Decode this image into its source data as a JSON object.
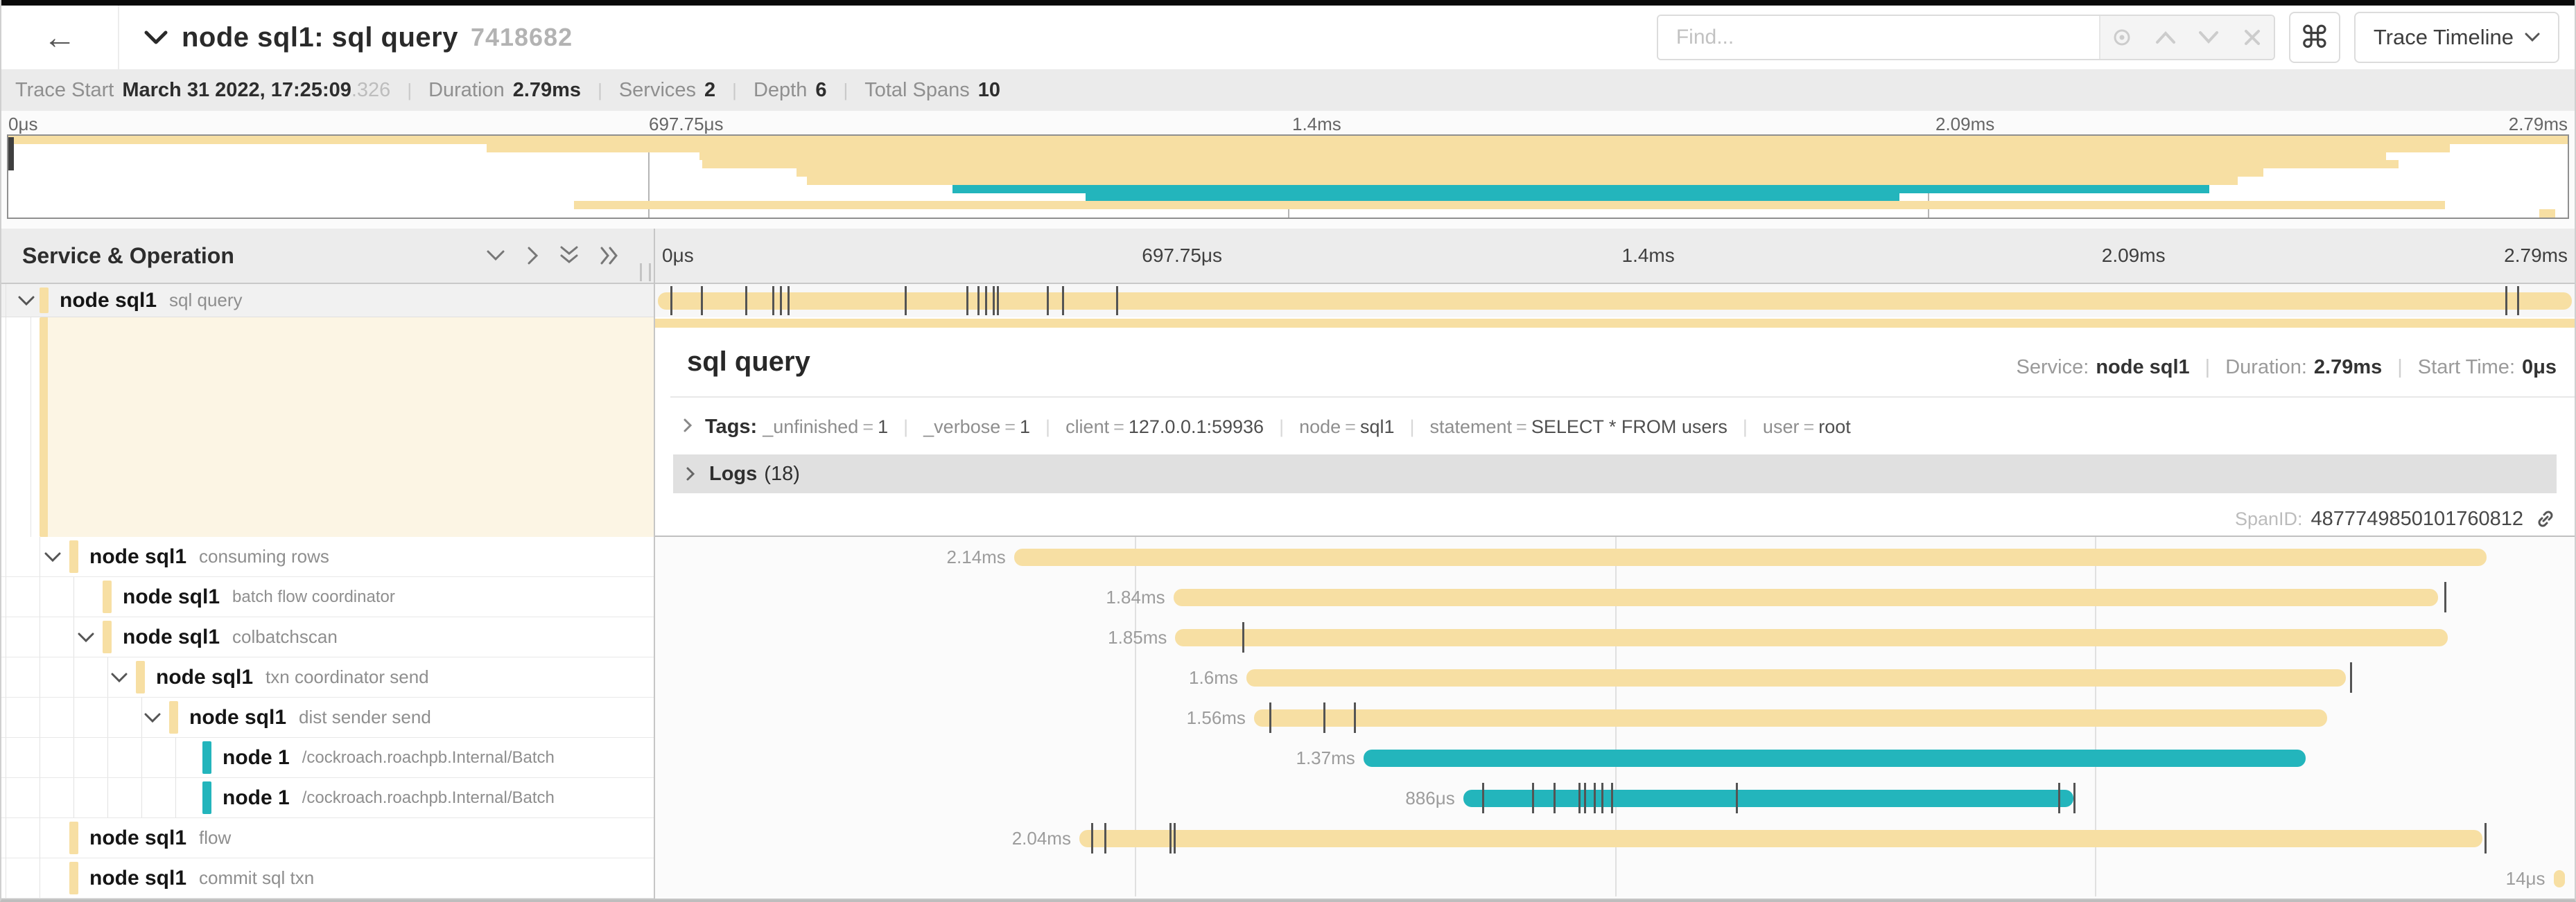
{
  "header": {
    "back_label": "←",
    "title": "node sql1: sql query",
    "trace_id": "7418682",
    "find_placeholder": "Find...",
    "view_label": "Trace Timeline"
  },
  "meta": {
    "items": [
      {
        "label": "Trace Start",
        "value": "March 31 2022, 17:25:09",
        "suffix": ".326"
      },
      {
        "label": "Duration",
        "value": "2.79ms"
      },
      {
        "label": "Services",
        "value": "2"
      },
      {
        "label": "Depth",
        "value": "6"
      },
      {
        "label": "Total Spans",
        "value": "10"
      }
    ]
  },
  "timeline": {
    "ticks": [
      "0μs",
      "697.75μs",
      "1.4ms",
      "2.09ms",
      "2.79ms"
    ],
    "total_duration": "2.79ms"
  },
  "left_header": {
    "title": "Service & Operation"
  },
  "colors": {
    "tan": "#f7dfa3",
    "teal": "#23b5bc"
  },
  "detail": {
    "title": "sql query",
    "service_label": "Service:",
    "service": "node sql1",
    "duration_label": "Duration:",
    "duration": "2.79ms",
    "start_label": "Start Time:",
    "start": "0μs",
    "tags_label": "Tags:",
    "tags": [
      {
        "key": "_unfinished",
        "value": "1"
      },
      {
        "key": "_verbose",
        "value": "1"
      },
      {
        "key": "client",
        "value": "127.0.0.1:59936"
      },
      {
        "key": "node",
        "value": "sql1"
      },
      {
        "key": "statement",
        "value": "SELECT * FROM users"
      },
      {
        "key": "user",
        "value": "root"
      }
    ],
    "logs_label": "Logs",
    "logs_count": "(18)",
    "span_id_label": "SpanID:",
    "span_id": "4877749850101760812"
  },
  "spans": [
    {
      "service": "node sql1",
      "operation": "sql query",
      "depth": 0,
      "color": "tan",
      "expandable": true,
      "duration": "2.79ms",
      "start": 0,
      "width": 100,
      "ticks": [
        0.8,
        2.4,
        4.7,
        6.1,
        6.5,
        6.9,
        13.0,
        16.2,
        16.8,
        17.2,
        17.6,
        17.8,
        20.4,
        21.2,
        24.0,
        96.4,
        97.0
      ]
    },
    {
      "service": "node sql1",
      "operation": "consuming rows",
      "depth": 1,
      "color": "tan",
      "expandable": true,
      "duration": "2.14ms",
      "start": 18.7,
      "width": 76.7,
      "ticks": []
    },
    {
      "service": "node sql1",
      "operation": "batch flow coordinator",
      "depth": 2,
      "color": "tan",
      "expandable": false,
      "duration": "1.84ms",
      "start": 27.0,
      "width": 65.9,
      "ticks": [
        93.2
      ]
    },
    {
      "service": "node sql1",
      "operation": "colbatchscan",
      "depth": 2,
      "color": "tan",
      "expandable": true,
      "duration": "1.85ms",
      "start": 27.1,
      "width": 66.3,
      "ticks": [
        30.6
      ]
    },
    {
      "service": "node sql1",
      "operation": "txn coordinator send",
      "depth": 3,
      "color": "tan",
      "expandable": true,
      "duration": "1.6ms",
      "start": 30.8,
      "width": 57.3,
      "ticks": [
        88.3
      ]
    },
    {
      "service": "node sql1",
      "operation": "dist sender send",
      "depth": 4,
      "color": "tan",
      "expandable": true,
      "duration": "1.56ms",
      "start": 31.2,
      "width": 55.9,
      "ticks": [
        32.0,
        34.8,
        36.4
      ]
    },
    {
      "service": "node 1",
      "operation": "/cockroach.roachpb.Internal/Batch",
      "depth": 5,
      "color": "teal",
      "expandable": false,
      "duration": "1.37ms",
      "start": 36.9,
      "width": 49.1,
      "ticks": []
    },
    {
      "service": "node 1",
      "operation": "/cockroach.roachpb.Internal/Batch",
      "depth": 5,
      "color": "teal",
      "expandable": false,
      "duration": "886μs",
      "start": 42.1,
      "width": 31.8,
      "ticks": [
        43.1,
        45.7,
        46.8,
        48.1,
        48.4,
        48.9,
        49.3,
        49.8,
        56.3,
        73.1,
        73.9
      ]
    },
    {
      "service": "node sql1",
      "operation": "flow",
      "depth": 1,
      "color": "tan",
      "expandable": false,
      "duration": "2.04ms",
      "start": 22.1,
      "width": 73.1,
      "ticks": [
        22.7,
        23.4,
        26.8,
        27.0,
        95.3
      ]
    },
    {
      "service": "node sql1",
      "operation": "commit sql txn",
      "depth": 1,
      "color": "tan",
      "expandable": false,
      "duration": "14μs",
      "start": 98.9,
      "width": 0.6,
      "ticks": []
    }
  ]
}
